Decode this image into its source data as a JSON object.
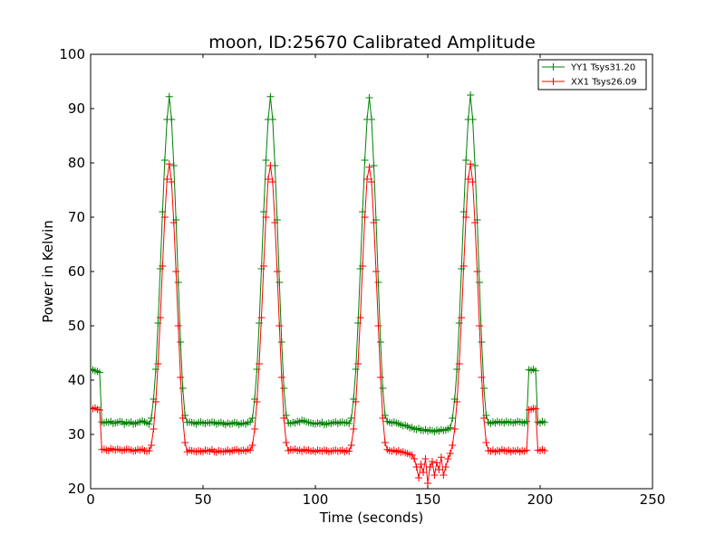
{
  "chart_data": {
    "type": "line",
    "title": "moon, ID:25670 Calibrated Amplitude",
    "xlabel": "Time (seconds)",
    "ylabel": "Power in Kelvin",
    "xlim": [
      0,
      250
    ],
    "ylim": [
      20,
      100
    ],
    "xticks": [
      0,
      50,
      100,
      150,
      200,
      250
    ],
    "yticks": [
      20,
      30,
      40,
      50,
      60,
      70,
      80,
      90,
      100
    ],
    "grid": false,
    "legend": "top-right",
    "marker": "plus",
    "sample_interval": 1,
    "series": [
      {
        "name": "YY1 Tsys31.20",
        "color": "#008000",
        "start": 0,
        "baseline": [
          32.3,
          32.1,
          32.3,
          32.2,
          32.4,
          32.0,
          32.1,
          32.2,
          32.4,
          32.3,
          31.9,
          32.2,
          32.1,
          32.3,
          31.9,
          32.0,
          32.2,
          32.3,
          32.5,
          32.3,
          32.1,
          31.9,
          32.2,
          32.3,
          32.2,
          32.1,
          31.9,
          32.2,
          32.3,
          32.1,
          32.0,
          32.2,
          32.1,
          32.3,
          32.2,
          31.9,
          32.1,
          32.2,
          32.0,
          31.8,
          32.1,
          31.9,
          32.0,
          32.2,
          32.1,
          31.8,
          32.0,
          32.1,
          31.9,
          32.2,
          32.3,
          32.1,
          32.0,
          32.2,
          32.1,
          32.4,
          32.3,
          32.6,
          32.5,
          32.3,
          32.2,
          32.1,
          32.0,
          31.9,
          32.1,
          32.0,
          32.2,
          31.8,
          31.9,
          32.1,
          32.0,
          32.2,
          32.3,
          32.0,
          32.2,
          32.3,
          32.1,
          32.2,
          32.0,
          32.4,
          32.2,
          32.1,
          32.3,
          32.1,
          32.0,
          31.8,
          31.6,
          31.7,
          31.5,
          31.2,
          31.3,
          31.0,
          30.9,
          31.1,
          30.8,
          30.7,
          30.9,
          30.6,
          30.8,
          30.7,
          30.5,
          30.8,
          30.6,
          30.9,
          30.7,
          30.8,
          31.0,
          31.2,
          32.2,
          32.0,
          32.3,
          32.1,
          32.4,
          32.2,
          32.3,
          32.1,
          32.4,
          32.2,
          32.3,
          32.1,
          32.2,
          32.4,
          32.3,
          32.2,
          32.1,
          32.4,
          32.6,
          32.3,
          32.2
        ],
        "peaks": [
          {
            "x": [
              27,
              28,
              29,
              30,
              31,
              32,
              33,
              34,
              35,
              36,
              37,
              38,
              39,
              40,
              41,
              42
            ],
            "y": [
              33.0,
              36.5,
              42.0,
              50.5,
              60.5,
              71.0,
              80.5,
              88.0,
              92.2,
              88.0,
              79.5,
              69.5,
              58.0,
              47.0,
              38.5,
              33.5
            ]
          },
          {
            "x": [
              72,
              73,
              74,
              75,
              76,
              77,
              78,
              79,
              80,
              81,
              82,
              83,
              84,
              85,
              86,
              87
            ],
            "y": [
              33.0,
              36.5,
              42.0,
              50.5,
              60.5,
              71.0,
              80.5,
              88.0,
              92.2,
              88.0,
              79.5,
              69.5,
              58.0,
              47.0,
              38.5,
              33.5
            ]
          },
          {
            "x": [
              116,
              117,
              118,
              119,
              120,
              121,
              122,
              123,
              124,
              125,
              126,
              127,
              128,
              129,
              130,
              131
            ],
            "y": [
              33.0,
              36.5,
              42.0,
              50.5,
              60.5,
              71.0,
              80.5,
              88.0,
              92.0,
              88.0,
              79.5,
              69.5,
              58.0,
              47.0,
              38.5,
              33.5
            ]
          },
          {
            "x": [
              161,
              162,
              163,
              164,
              165,
              166,
              167,
              168,
              169,
              170,
              171,
              172,
              173,
              174,
              175,
              176
            ],
            "y": [
              33.0,
              36.5,
              42.0,
              50.5,
              60.5,
              71.0,
              80.5,
              88.0,
              92.5,
              88.0,
              79.5,
              69.5,
              58.0,
              47.0,
              38.5,
              33.5
            ]
          }
        ],
        "lead": {
          "x": [
            0,
            1,
            2,
            3,
            4
          ],
          "y": [
            42.0,
            41.9,
            41.7,
            41.6,
            41.4
          ]
        },
        "tail": {
          "x": [
            195,
            196,
            197,
            198,
            199,
            200,
            201,
            202
          ],
          "y": [
            41.9,
            41.8,
            42.0,
            41.7,
            32.3,
            32.1,
            32.4,
            32.2
          ]
        }
      },
      {
        "name": "XX1 Tsys26.09",
        "color": "#ff0000",
        "start": 0,
        "baseline": [
          27.2,
          27.3,
          27.1,
          27.0,
          27.4,
          27.2,
          27.1,
          27.3,
          27.2,
          27.0,
          27.1,
          27.3,
          27.2,
          27.1,
          26.9,
          27.0,
          27.2,
          27.1,
          27.3,
          27.0,
          26.9,
          27.0,
          26.8,
          27.1,
          27.0,
          26.9,
          26.8,
          27.0,
          26.9,
          26.8,
          27.1,
          27.0,
          26.9,
          27.2,
          26.8,
          26.7,
          27.0,
          26.9,
          26.8,
          26.9,
          27.1,
          26.8,
          27.0,
          27.1,
          27.2,
          26.9,
          27.0,
          27.1,
          26.9,
          27.2,
          27.1,
          27.0,
          27.2,
          27.1,
          27.3,
          27.0,
          27.1,
          26.9,
          27.2,
          27.0,
          27.1,
          26.9,
          27.0,
          26.8,
          27.1,
          27.0,
          26.9,
          27.1,
          27.0,
          26.8,
          26.9,
          27.0,
          27.1,
          26.9,
          27.0,
          27.1,
          26.8,
          27.0,
          26.9,
          27.2,
          27.0,
          26.9,
          27.1,
          26.8,
          27.0,
          26.7,
          26.8,
          26.6,
          26.5,
          26.3,
          26.2,
          25.5,
          24.0,
          22.0,
          24.5,
          23.0,
          25.5,
          21.0,
          24.0,
          25.0,
          22.5,
          24.8,
          23.5,
          25.8,
          22.5,
          24.0,
          25.5,
          26.5,
          27.0,
          26.9,
          27.1,
          26.8,
          27.0,
          26.9,
          27.2,
          27.0,
          26.9,
          27.1,
          26.8,
          27.0,
          26.9,
          27.1,
          26.8,
          27.0,
          26.9,
          27.1,
          27.2,
          26.8,
          27.0
        ],
        "peaks": [
          {
            "x": [
              27,
              28,
              29,
              30,
              31,
              32,
              33,
              34,
              35,
              36,
              37,
              38,
              39,
              40,
              41,
              42
            ],
            "y": [
              28.0,
              31.0,
              36.0,
              43.0,
              51.5,
              61.0,
              70.0,
              77.0,
              79.8,
              76.5,
              69.0,
              60.0,
              50.0,
              40.5,
              33.0,
              28.5
            ]
          },
          {
            "x": [
              72,
              73,
              74,
              75,
              76,
              77,
              78,
              79,
              80,
              81,
              82,
              83,
              84,
              85,
              86,
              87
            ],
            "y": [
              28.0,
              31.0,
              36.0,
              43.0,
              51.5,
              61.0,
              70.0,
              77.0,
              79.5,
              76.5,
              69.0,
              60.0,
              50.0,
              40.5,
              33.0,
              28.5
            ]
          },
          {
            "x": [
              116,
              117,
              118,
              119,
              120,
              121,
              122,
              123,
              124,
              125,
              126,
              127,
              128,
              129,
              130,
              131
            ],
            "y": [
              28.0,
              31.0,
              36.0,
              43.0,
              51.5,
              61.0,
              70.0,
              77.0,
              79.2,
              76.5,
              69.0,
              60.0,
              50.0,
              40.5,
              33.0,
              28.5
            ]
          },
          {
            "x": [
              161,
              162,
              163,
              164,
              165,
              166,
              167,
              168,
              169,
              170,
              171,
              172,
              173,
              174,
              175,
              176
            ],
            "y": [
              28.0,
              31.0,
              36.0,
              43.0,
              51.5,
              61.0,
              70.0,
              77.0,
              79.8,
              76.5,
              69.0,
              60.0,
              50.0,
              40.5,
              33.0,
              28.5
            ]
          }
        ],
        "lead": {
          "x": [
            0,
            1,
            2,
            3,
            4
          ],
          "y": [
            34.8,
            34.7,
            34.9,
            34.6,
            34.5
          ]
        },
        "tail": {
          "x": [
            195,
            196,
            197,
            198,
            199,
            200,
            201,
            202
          ],
          "y": [
            34.5,
            34.6,
            34.8,
            34.7,
            27.1,
            27.0,
            27.2,
            27.0
          ]
        }
      }
    ]
  }
}
